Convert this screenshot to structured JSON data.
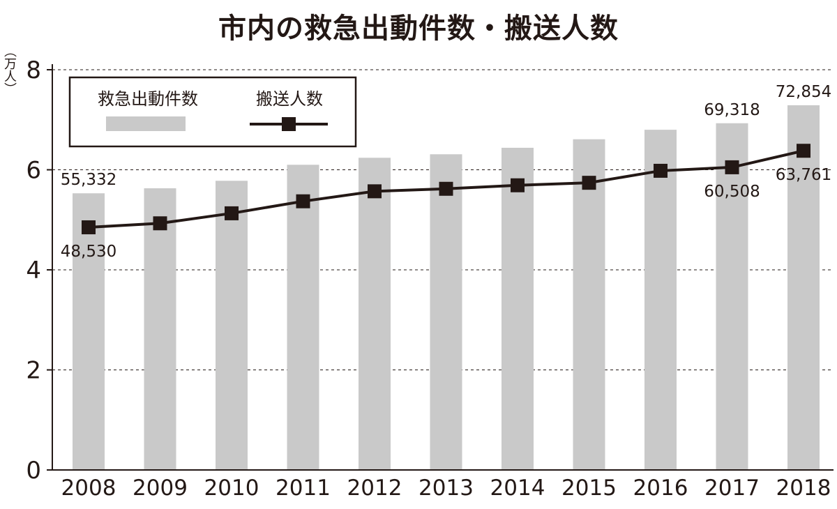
{
  "chart_data": {
    "type": "bar",
    "title": "市内の救急出動件数・搬送人数",
    "ylabel": "（万人）",
    "xlabel": "",
    "ylim": [
      0,
      8
    ],
    "yticks": [
      "0",
      "2",
      "4",
      "6",
      "8"
    ],
    "grid": true,
    "legend_position": "top-left",
    "categories": [
      "2008",
      "2009",
      "2010",
      "2011",
      "2012",
      "2013",
      "2014",
      "2015",
      "2016",
      "2017",
      "2018"
    ],
    "series": [
      {
        "name": "救急出動件数",
        "type": "bar",
        "color": "#c9c9c9",
        "values": [
          5.53,
          5.63,
          5.78,
          6.1,
          6.24,
          6.31,
          6.44,
          6.61,
          6.8,
          6.93,
          7.29
        ]
      },
      {
        "name": "搬送人数",
        "type": "line",
        "color": "#231815",
        "values": [
          4.85,
          4.93,
          5.13,
          5.37,
          5.57,
          5.62,
          5.69,
          5.74,
          5.98,
          6.05,
          6.38
        ]
      }
    ],
    "annotations": [
      {
        "text": "55,332",
        "series": 0,
        "index": 0,
        "pos": "above"
      },
      {
        "text": "48,530",
        "series": 1,
        "index": 0,
        "pos": "below"
      },
      {
        "text": "69,318",
        "series": 0,
        "index": 9,
        "pos": "above"
      },
      {
        "text": "60,508",
        "series": 1,
        "index": 9,
        "pos": "below"
      },
      {
        "text": "72,854",
        "series": 0,
        "index": 10,
        "pos": "above"
      },
      {
        "text": "63,761",
        "series": 1,
        "index": 10,
        "pos": "below"
      }
    ]
  }
}
